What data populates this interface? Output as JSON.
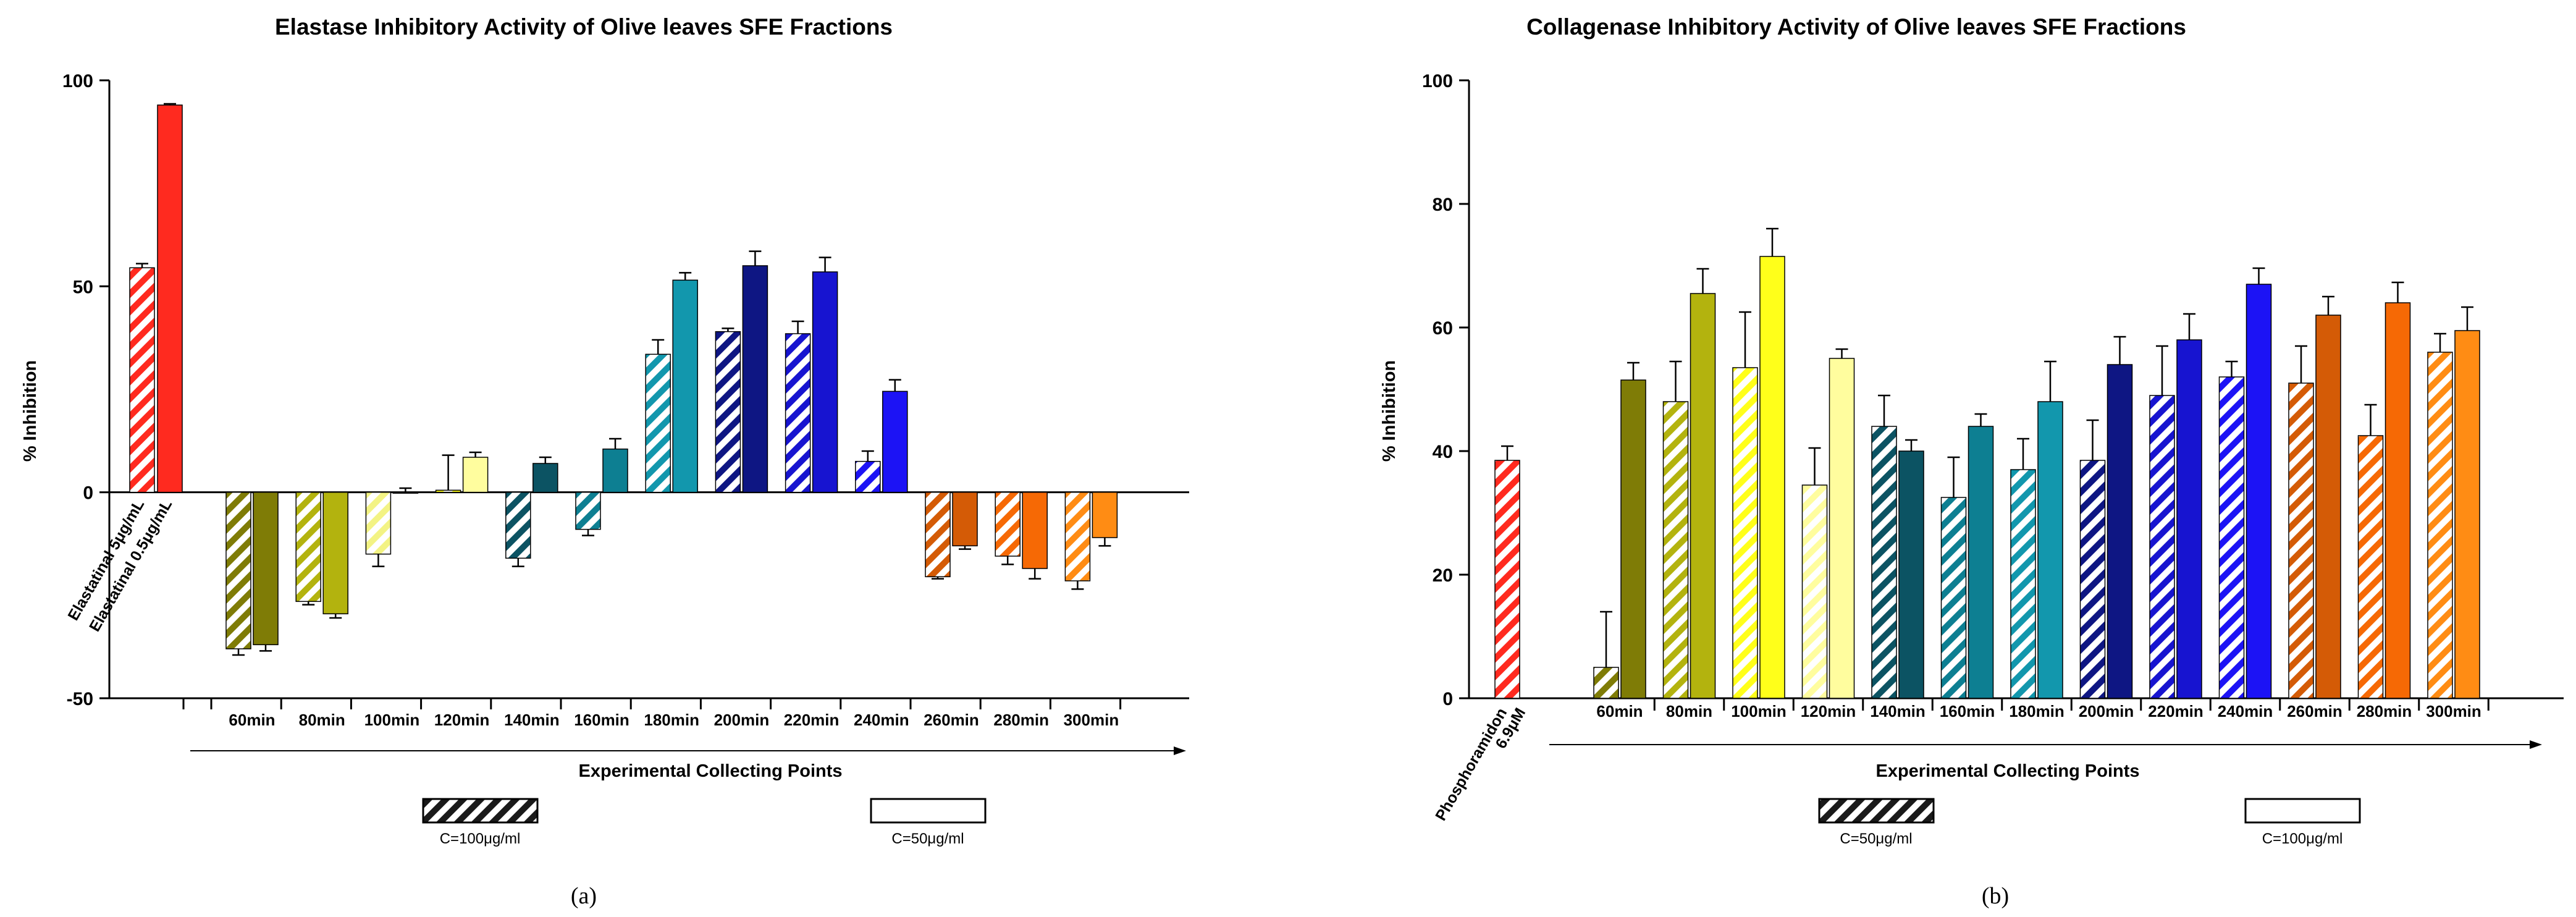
{
  "colors": {
    "red": "#ff2a1f",
    "olive": "#7f7c06",
    "olive2": "#b3b30e",
    "yellow_light": "#f3f384",
    "yellow": "#ffff1a",
    "cream": "#fffd9e",
    "teal_dark": "#0c5363",
    "teal": "#0d7f92",
    "cyan": "#1297ad",
    "navy": "#0e1683",
    "blue": "#1714d0",
    "blue_bright": "#1c13f5",
    "orange_dark": "#d45b06",
    "orange": "#f66905",
    "orange_light": "#ff8c14"
  },
  "chart_data": [
    {
      "id": "a",
      "type": "bar",
      "title": "Elastase Inhibitory Activity of Olive leaves SFE Fractions",
      "ylabel": "% Inhibition",
      "xlabel": "Experimental Collecting Points",
      "ylim": [
        -50,
        100
      ],
      "yticks": [
        -50,
        0,
        50,
        100
      ],
      "grid": false,
      "panel_label": "(a)",
      "controls": [
        {
          "label": "Elastatinal  5μg/mL",
          "value": 54.5,
          "err": 1.0,
          "pattern": "hatch",
          "color": "red"
        },
        {
          "label": "Elastatinal  0.5μg/mL",
          "value": 94,
          "err": 0.3,
          "pattern": "solid",
          "color": "red"
        }
      ],
      "categories": [
        "60min",
        "80min",
        "100min",
        "120min",
        "140min",
        "160min",
        "180min",
        "200min",
        "220min",
        "240min",
        "260min",
        "280min",
        "300min"
      ],
      "series": [
        {
          "name": "C=100μg/ml",
          "pattern": "hatch",
          "values": [
            -38,
            -26.5,
            -15,
            0.5,
            -16,
            -9,
            33.5,
            39,
            38.5,
            7.5,
            -20.5,
            -15.5,
            -21.5
          ],
          "errors": [
            1.5,
            0.8,
            3.0,
            8.5,
            2.0,
            1.5,
            3.5,
            0.8,
            3.0,
            2.5,
            0.5,
            2.0,
            2.0
          ],
          "colors": [
            "olive",
            "olive2",
            "yellow_light",
            "yellow",
            "teal_dark",
            "teal",
            "cyan",
            "navy",
            "blue",
            "blue_bright",
            "orange_dark",
            "orange",
            "orange_light"
          ]
        },
        {
          "name": "C=50μg/ml",
          "pattern": "solid",
          "values": [
            -37,
            -29.5,
            0,
            8.5,
            7,
            10.5,
            51.5,
            55,
            53.5,
            24.5,
            -13,
            -18.5,
            -11
          ],
          "errors": [
            1.5,
            1.0,
            1.0,
            1.2,
            1.5,
            2.5,
            1.8,
            3.5,
            3.5,
            2.8,
            0.8,
            2.5,
            2.0
          ],
          "colors": [
            "olive",
            "olive2",
            "yellow",
            "cream",
            "teal_dark",
            "teal",
            "cyan",
            "navy",
            "blue",
            "blue_bright",
            "orange_dark",
            "orange",
            "orange_light"
          ]
        }
      ],
      "legend": [
        {
          "label": "C=100μg/ml",
          "pattern": "hatch"
        },
        {
          "label": "C=50μg/ml",
          "pattern": "solid"
        }
      ]
    },
    {
      "id": "b",
      "type": "bar",
      "title": "Collagenase Inhibitory Activity of Olive leaves SFE Fractions",
      "ylabel": "% Inhibition",
      "xlabel": "Experimental Collecting Points",
      "ylim": [
        0,
        100
      ],
      "yticks": [
        0,
        20,
        40,
        60,
        80,
        100
      ],
      "grid": false,
      "panel_label": "(b)",
      "controls": [
        {
          "label": "Phosphoramidon",
          "label2": "6.9μM",
          "value": 38.5,
          "err": 2.3,
          "pattern": "hatch",
          "color": "red"
        }
      ],
      "categories": [
        "60min",
        "80min",
        "100min",
        "120min",
        "140min",
        "160min",
        "180min",
        "200min",
        "220min",
        "240min",
        "260min",
        "280min",
        "300min"
      ],
      "series": [
        {
          "name": "C=50μg/ml",
          "pattern": "hatch",
          "values": [
            5,
            48,
            53.5,
            34.5,
            44,
            32.5,
            37,
            38.5,
            49,
            52,
            51,
            42.5,
            56
          ],
          "errors": [
            9,
            6.5,
            9,
            6,
            5,
            6.5,
            5,
            6.5,
            8,
            2.5,
            6,
            5,
            3
          ],
          "colors": [
            "olive",
            "olive2",
            "yellow",
            "cream",
            "teal_dark",
            "teal",
            "cyan",
            "navy",
            "blue",
            "blue_bright",
            "orange_dark",
            "orange",
            "orange_light"
          ]
        },
        {
          "name": "C=100μg/ml",
          "pattern": "solid",
          "values": [
            51.5,
            65.5,
            71.5,
            55,
            40,
            44,
            48,
            54,
            58,
            67,
            62,
            64,
            59.5
          ],
          "errors": [
            2.8,
            4,
            4.5,
            1.5,
            1.8,
            2,
            6.5,
            4.5,
            4.2,
            2.6,
            3,
            3.3,
            3.8
          ],
          "colors": [
            "olive",
            "olive2",
            "yellow",
            "cream",
            "teal_dark",
            "teal",
            "cyan",
            "navy",
            "blue",
            "blue_bright",
            "orange_dark",
            "orange",
            "orange_light"
          ]
        }
      ],
      "legend": [
        {
          "label": "C=50μg/ml",
          "pattern": "hatch"
        },
        {
          "label": "C=100μg/ml",
          "pattern": "solid"
        }
      ]
    }
  ]
}
